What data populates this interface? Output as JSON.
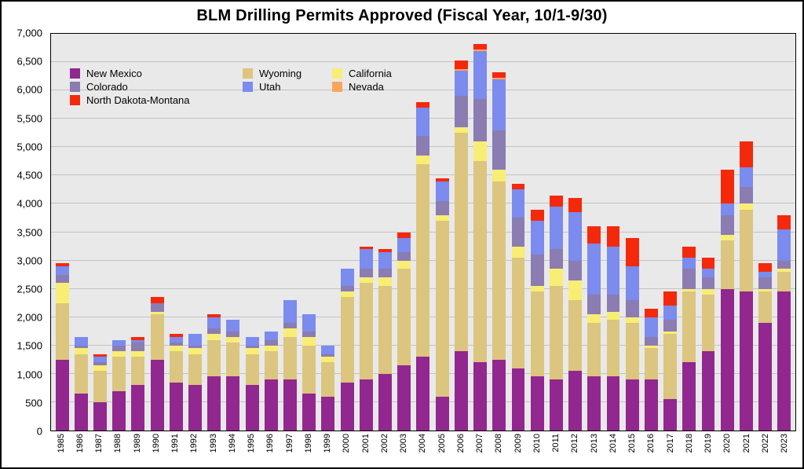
{
  "chart_data": {
    "type": "bar",
    "stacked": true,
    "title": "BLM Drilling Permits Approved (Fiscal Year, 10/1-9/30)",
    "xlabel": "",
    "ylabel": "",
    "ylim": [
      0,
      7000
    ],
    "ytick": 500,
    "grid": true,
    "legend_position": "top-left",
    "y_tick_labels": [
      "0",
      "500",
      "1,000",
      "1,500",
      "2,000",
      "2,500",
      "3,000",
      "3,500",
      "4,000",
      "4,500",
      "5,000",
      "5,500",
      "6,000",
      "6,500",
      "7,000"
    ],
    "categories": [
      "1985",
      "1986",
      "1987",
      "1988",
      "1989",
      "1990",
      "1991",
      "1992",
      "1993",
      "1994",
      "1995",
      "1996",
      "1997",
      "1998",
      "1999",
      "2000",
      "2001",
      "2002",
      "2003",
      "2004",
      "2005",
      "2006",
      "2007",
      "2008",
      "2009",
      "2010",
      "2011",
      "2012",
      "2013",
      "2014",
      "2015",
      "2016",
      "2017",
      "2018",
      "2019",
      "2020",
      "2021",
      "2022",
      "2023"
    ],
    "series": [
      {
        "name": "New Mexico",
        "color": "#92278F",
        "values": [
          1250,
          650,
          500,
          700,
          800,
          1250,
          850,
          800,
          950,
          950,
          800,
          900,
          900,
          650,
          600,
          850,
          900,
          1000,
          1150,
          1300,
          600,
          1400,
          1200,
          1250,
          1100,
          950,
          900,
          1050,
          950,
          950,
          900,
          900,
          550,
          1200,
          1400,
          2500,
          2450,
          1900,
          2450
        ]
      },
      {
        "name": "Wyoming",
        "color": "#DCC57E",
        "values": [
          1000,
          700,
          550,
          600,
          500,
          800,
          550,
          550,
          650,
          600,
          550,
          500,
          750,
          850,
          600,
          1500,
          1700,
          1550,
          1700,
          3400,
          3100,
          3850,
          3550,
          3150,
          1950,
          1500,
          1650,
          1250,
          950,
          1000,
          1000,
          550,
          1150,
          1250,
          1000,
          850,
          1450,
          550,
          350
        ]
      },
      {
        "name": "California",
        "color": "#F8EE73",
        "values": [
          350,
          100,
          100,
          100,
          100,
          50,
          100,
          100,
          100,
          100,
          100,
          100,
          150,
          150,
          100,
          100,
          100,
          150,
          150,
          150,
          100,
          100,
          350,
          200,
          200,
          100,
          300,
          350,
          150,
          150,
          100,
          50,
          50,
          50,
          100,
          100,
          100,
          50,
          50
        ]
      },
      {
        "name": "Colorado",
        "color": "#8B7CB2",
        "values": [
          150,
          50,
          50,
          100,
          150,
          150,
          50,
          50,
          100,
          100,
          50,
          100,
          100,
          100,
          50,
          100,
          150,
          150,
          150,
          350,
          250,
          550,
          750,
          700,
          500,
          550,
          350,
          350,
          350,
          300,
          300,
          150,
          200,
          350,
          200,
          350,
          300,
          200,
          150
        ]
      },
      {
        "name": "Utah",
        "color": "#7B8BEE",
        "values": [
          150,
          150,
          100,
          100,
          50,
          0,
          100,
          200,
          200,
          200,
          150,
          150,
          400,
          300,
          150,
          300,
          350,
          300,
          250,
          500,
          350,
          450,
          850,
          900,
          500,
          600,
          750,
          850,
          900,
          850,
          600,
          350,
          250,
          200,
          150,
          200,
          350,
          100,
          550
        ]
      },
      {
        "name": "Nevada",
        "color": "#F9A65A",
        "values": [
          0,
          0,
          0,
          0,
          0,
          0,
          0,
          0,
          0,
          0,
          0,
          0,
          0,
          0,
          0,
          0,
          0,
          0,
          0,
          0,
          0,
          25,
          25,
          25,
          0,
          0,
          0,
          0,
          0,
          0,
          0,
          0,
          0,
          0,
          0,
          0,
          0,
          0,
          0
        ]
      },
      {
        "name": "North Dakota-Montana",
        "color": "#F4290C",
        "values": [
          50,
          0,
          50,
          0,
          50,
          100,
          50,
          0,
          50,
          0,
          0,
          0,
          0,
          0,
          0,
          0,
          50,
          50,
          100,
          100,
          50,
          150,
          100,
          100,
          100,
          200,
          200,
          250,
          300,
          350,
          500,
          150,
          250,
          200,
          200,
          600,
          450,
          150,
          250
        ]
      }
    ],
    "legend_columns": [
      [
        "New Mexico",
        "Colorado",
        "North Dakota-Montana"
      ],
      [
        "Wyoming",
        "Utah"
      ],
      [
        "California",
        "Nevada"
      ]
    ]
  }
}
